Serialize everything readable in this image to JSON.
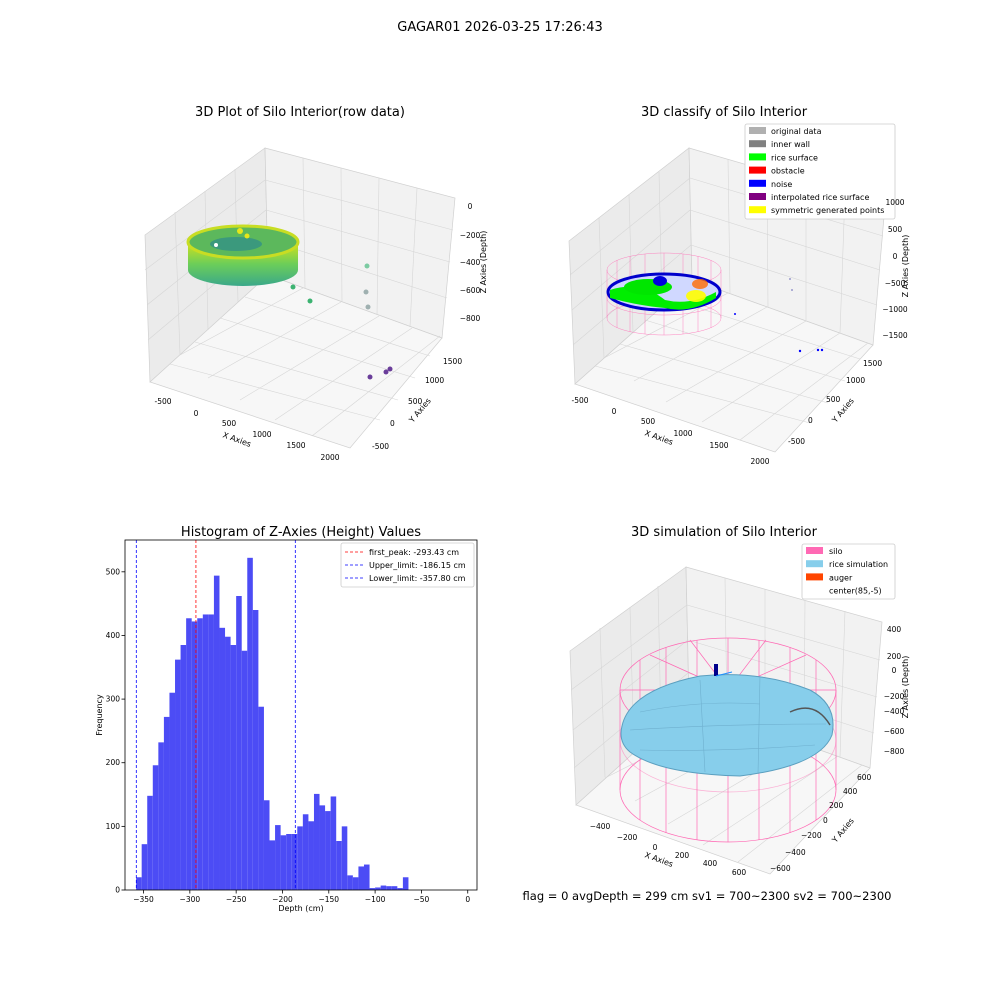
{
  "suptitle": "GAGAR01 2026-03-25 17:26:43",
  "status_line": "flag = 0     avgDepth = 299 cm  sv1 = 700~2300  sv2 = 700~2300",
  "panels": {
    "raw": {
      "title": "3D Plot of Silo Interior(row data)",
      "xlabel": "X Axies",
      "ylabel": "Y Axies",
      "zlabel": "Z Axies (Depth)",
      "xticks": [
        "-500",
        "0",
        "500",
        "1000",
        "1500",
        "2000"
      ],
      "yticks": [
        "-500",
        "0",
        "500",
        "1000",
        "1500"
      ],
      "zticks": [
        "0",
        "−200",
        "−400",
        "−600",
        "−800"
      ]
    },
    "classify": {
      "title": "3D classify of Silo Interior",
      "xlabel": "X Axies",
      "ylabel": "Y Axies",
      "zlabel": "Z Axies (Depth)",
      "xticks": [
        "-500",
        "0",
        "500",
        "1000",
        "1500",
        "2000"
      ],
      "yticks": [
        "-500",
        "0",
        "500",
        "1000",
        "1500"
      ],
      "zticks": [
        "1000",
        "500",
        "0",
        "−500",
        "−1000",
        "−1500"
      ],
      "legend": [
        {
          "label": "original data",
          "color": "#b0b0b0"
        },
        {
          "label": "inner wall",
          "color": "#808080"
        },
        {
          "label": "rice surface",
          "color": "#00ff00"
        },
        {
          "label": "obstacle",
          "color": "#ff0000"
        },
        {
          "label": "noise",
          "color": "#0000ff"
        },
        {
          "label": "interpolated rice surface",
          "color": "#800080"
        },
        {
          "label": "symmetric generated points",
          "color": "#ffff00"
        }
      ]
    },
    "simulation": {
      "title": "3D simulation of Silo Interior",
      "xlabel": "X Axies",
      "ylabel": "Y Axies",
      "zlabel": "Z Axies (Depth)",
      "xticks": [
        "−400",
        "−200",
        "0",
        "200",
        "400",
        "600"
      ],
      "yticks": [
        "−600",
        "−400",
        "−200",
        "0",
        "200",
        "400",
        "600"
      ],
      "zticks": [
        "400",
        "200",
        "0",
        "−200",
        "−400",
        "−600",
        "−800"
      ],
      "legend": [
        {
          "label": "silo",
          "color": "#ff69b4"
        },
        {
          "label": "rice simulation",
          "color": "#87ceeb"
        },
        {
          "label": "auger",
          "color": "#ff4500"
        },
        {
          "label": "center(85,-5)",
          "color": ""
        }
      ]
    }
  },
  "chart_data": {
    "type": "bar",
    "title": "Histogram of Z-Axies (Height) Values",
    "xlabel": "Depth (cm)",
    "ylabel": "Frequency",
    "xlim": [
      -370,
      10
    ],
    "ylim": [
      0,
      550
    ],
    "xticks": [
      -350,
      -300,
      -250,
      -200,
      -150,
      -100,
      -50,
      0
    ],
    "xtick_labels": [
      "−350",
      "−300",
      "−250",
      "−200",
      "−150",
      "−100",
      "−50",
      "0"
    ],
    "yticks": [
      0,
      100,
      200,
      300,
      400,
      500
    ],
    "bar_color": "#4c4cf5",
    "bin_start": -358,
    "bin_width": 6,
    "values": [
      20,
      72,
      148,
      196,
      232,
      272,
      310,
      362,
      385,
      427,
      422,
      427,
      433,
      433,
      494,
      412,
      398,
      385,
      462,
      376,
      522,
      440,
      288,
      141,
      78,
      102,
      86,
      88,
      88,
      100,
      119,
      108,
      151,
      133,
      124,
      147,
      77,
      100,
      23,
      20,
      37,
      40,
      3,
      4,
      7,
      6,
      6,
      3,
      20
    ],
    "vlines": [
      {
        "label": "first_peak: -293.43 cm",
        "x": -293.43,
        "color": "#ff0000"
      },
      {
        "label": "Upper_limit: -186.15 cm",
        "x": -186.15,
        "color": "#0000ff"
      },
      {
        "label": "Lower_limit: -357.80 cm",
        "x": -357.8,
        "color": "#0000ff"
      }
    ],
    "legend_position": "upper right",
    "grid": false
  }
}
